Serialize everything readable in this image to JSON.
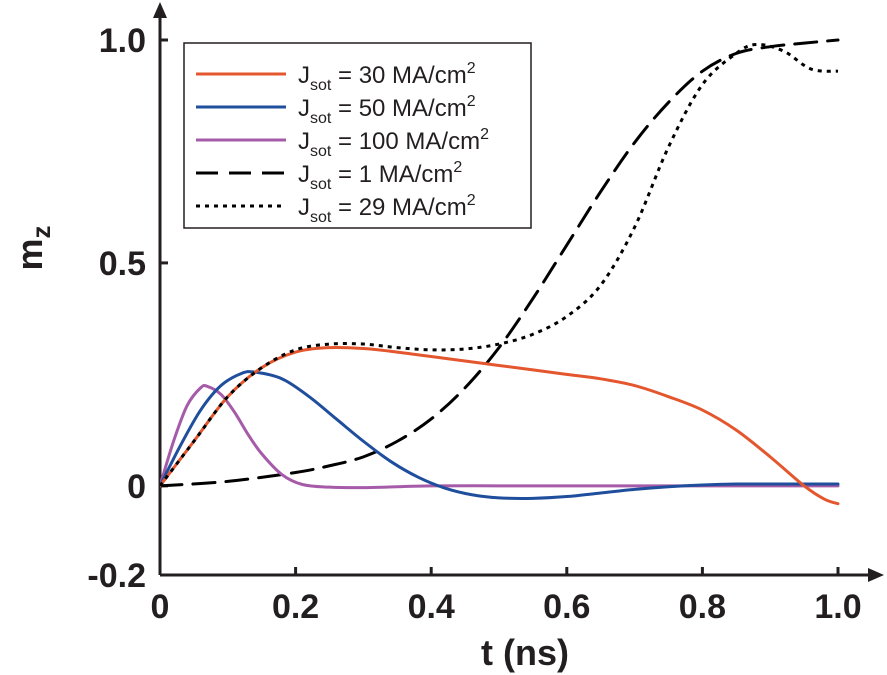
{
  "chart_data": {
    "type": "line",
    "title": "",
    "xlabel": "t (ns)",
    "ylabel_main": "m",
    "ylabel_sub": "z",
    "xlim": [
      0,
      1.0
    ],
    "ylim": [
      -0.2,
      1.0
    ],
    "x_ticks": [
      0,
      0.2,
      0.4,
      0.6,
      0.8,
      1.0
    ],
    "x_tick_labels": [
      "0",
      "0.2",
      "0.4",
      "0.6",
      "0.8",
      "1.0"
    ],
    "y_ticks": [
      -0.2,
      0,
      0.5,
      1.0
    ],
    "y_tick_labels": [
      "-0.2",
      "0",
      "0.5",
      "1.0"
    ],
    "grid": false,
    "legend_position": "top-left",
    "series": [
      {
        "name": "J_sot = 30 MA/cm^2",
        "label_main": "J",
        "label_sub": "sot",
        "label_mid": " = 30 MA/cm",
        "label_sup": "2",
        "color": "#e4572e",
        "style": "solid",
        "x": [
          0,
          0.05,
          0.1,
          0.15,
          0.2,
          0.25,
          0.3,
          0.35,
          0.4,
          0.45,
          0.5,
          0.55,
          0.6,
          0.65,
          0.7,
          0.75,
          0.8,
          0.85,
          0.9,
          0.95,
          0.98,
          1.0
        ],
        "y": [
          0,
          0.1,
          0.2,
          0.265,
          0.3,
          0.31,
          0.308,
          0.3,
          0.29,
          0.28,
          0.27,
          0.26,
          0.25,
          0.24,
          0.225,
          0.2,
          0.17,
          0.125,
          0.065,
          0.0,
          -0.03,
          -0.04
        ]
      },
      {
        "name": "J_sot = 50 MA/cm^2",
        "label_main": "J",
        "label_sub": "sot",
        "label_mid": " = 50 MA/cm",
        "label_sup": "2",
        "color": "#1f4e9c",
        "style": "solid",
        "x": [
          0,
          0.03,
          0.06,
          0.09,
          0.12,
          0.14,
          0.18,
          0.22,
          0.26,
          0.3,
          0.34,
          0.38,
          0.42,
          0.46,
          0.5,
          0.55,
          0.6,
          0.65,
          0.7,
          0.75,
          0.8,
          0.85,
          0.9,
          1.0
        ],
        "y": [
          0,
          0.09,
          0.17,
          0.225,
          0.252,
          0.255,
          0.24,
          0.2,
          0.15,
          0.1,
          0.055,
          0.02,
          -0.005,
          -0.02,
          -0.027,
          -0.028,
          -0.024,
          -0.016,
          -0.008,
          -0.002,
          0.002,
          0.004,
          0.004,
          0.004
        ]
      },
      {
        "name": "J_sot = 100 MA/cm^2",
        "label_main": "J",
        "label_sub": "sot",
        "label_mid": " = 100 MA/cm",
        "label_sup": "2",
        "color": "#a55ba8",
        "style": "solid",
        "x": [
          0,
          0.02,
          0.04,
          0.06,
          0.07,
          0.09,
          0.11,
          0.13,
          0.15,
          0.18,
          0.21,
          0.25,
          0.3,
          0.35,
          0.4,
          0.5,
          0.6,
          0.8,
          1.0
        ],
        "y": [
          0,
          0.1,
          0.18,
          0.22,
          0.223,
          0.205,
          0.165,
          0.115,
          0.072,
          0.025,
          0.003,
          -0.003,
          -0.004,
          -0.002,
          0,
          0,
          0,
          0,
          0
        ]
      },
      {
        "name": "J_sot = 1 MA/cm^2",
        "label_main": "J",
        "label_sub": "sot",
        "label_mid": " = 1 MA/cm",
        "label_sup": "2",
        "color": "#000000",
        "style": "dashed",
        "x": [
          0,
          0.1,
          0.2,
          0.25,
          0.3,
          0.35,
          0.4,
          0.45,
          0.5,
          0.55,
          0.6,
          0.65,
          0.7,
          0.75,
          0.8,
          0.85,
          0.9,
          0.95,
          1.0
        ],
        "y": [
          0,
          0.01,
          0.03,
          0.045,
          0.065,
          0.1,
          0.15,
          0.22,
          0.31,
          0.42,
          0.54,
          0.66,
          0.77,
          0.86,
          0.93,
          0.97,
          0.985,
          0.993,
          1.0
        ]
      },
      {
        "name": "J_sot = 29 MA/cm^2",
        "label_main": "J",
        "label_sub": "sot",
        "label_mid": " = 29 MA/cm",
        "label_sup": "2",
        "color": "#000000",
        "style": "dotted",
        "x": [
          0,
          0.05,
          0.1,
          0.15,
          0.2,
          0.25,
          0.3,
          0.35,
          0.4,
          0.45,
          0.5,
          0.55,
          0.6,
          0.65,
          0.7,
          0.75,
          0.8,
          0.85,
          0.88,
          0.92,
          0.96,
          1.0
        ],
        "y": [
          0,
          0.1,
          0.2,
          0.265,
          0.305,
          0.318,
          0.318,
          0.31,
          0.305,
          0.307,
          0.318,
          0.34,
          0.38,
          0.45,
          0.58,
          0.76,
          0.9,
          0.97,
          0.99,
          0.975,
          0.935,
          0.93
        ]
      }
    ]
  }
}
